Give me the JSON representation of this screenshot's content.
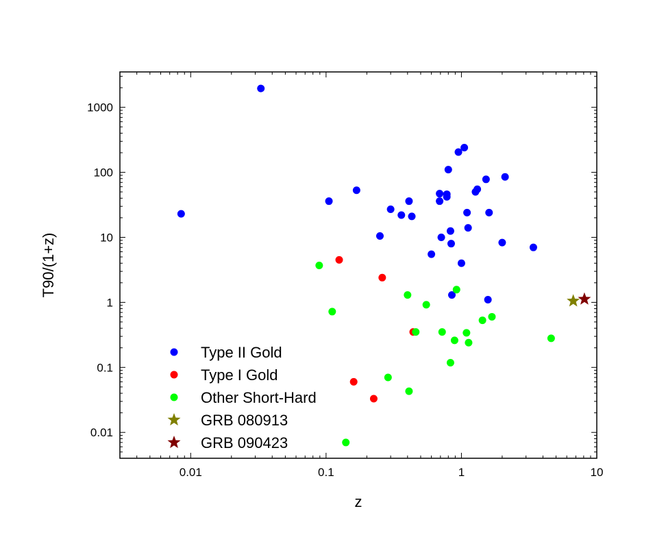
{
  "chart_data": {
    "type": "scatter",
    "title": "",
    "xlabel": "z",
    "ylabel": "T90/(1+z)",
    "xscale": "log",
    "yscale": "log",
    "xlim": [
      0.003,
      10
    ],
    "ylim": [
      0.004,
      3500
    ],
    "x_ticks": [
      {
        "value": 0.01,
        "label": "0.01"
      },
      {
        "value": 0.1,
        "label": "0.1"
      },
      {
        "value": 1,
        "label": "1"
      },
      {
        "value": 10,
        "label": "10"
      }
    ],
    "y_ticks": [
      {
        "value": 0.01,
        "label": "0.01"
      },
      {
        "value": 0.1,
        "label": "0.1"
      },
      {
        "value": 1,
        "label": "1"
      },
      {
        "value": 10,
        "label": "10"
      },
      {
        "value": 100,
        "label": "100"
      },
      {
        "value": 1000,
        "label": "1000"
      }
    ],
    "grid": false,
    "legend_position": "bottom-left",
    "series": [
      {
        "name": "Type II Gold",
        "marker": "circle",
        "color": "#0000ff",
        "points": [
          [
            0.0085,
            23
          ],
          [
            0.033,
            1950
          ],
          [
            0.105,
            36
          ],
          [
            0.168,
            53
          ],
          [
            0.25,
            10.5
          ],
          [
            0.3,
            27
          ],
          [
            0.36,
            22
          ],
          [
            0.41,
            36
          ],
          [
            0.43,
            21
          ],
          [
            0.6,
            5.5
          ],
          [
            0.69,
            47
          ],
          [
            0.69,
            36
          ],
          [
            0.71,
            10
          ],
          [
            0.78,
            46
          ],
          [
            0.78,
            42
          ],
          [
            0.8,
            110
          ],
          [
            0.83,
            12.5
          ],
          [
            0.84,
            8
          ],
          [
            0.85,
            1.3
          ],
          [
            0.95,
            205
          ],
          [
            1.0,
            4
          ],
          [
            1.05,
            240
          ],
          [
            1.1,
            24
          ],
          [
            1.12,
            14
          ],
          [
            1.27,
            50
          ],
          [
            1.31,
            55
          ],
          [
            1.52,
            78
          ],
          [
            1.57,
            1.1
          ],
          [
            1.6,
            24
          ],
          [
            2.0,
            8.3
          ],
          [
            2.1,
            85
          ],
          [
            3.4,
            7
          ]
        ]
      },
      {
        "name": "Type I Gold",
        "marker": "circle",
        "color": "#ff0000",
        "points": [
          [
            0.125,
            4.5
          ],
          [
            0.16,
            0.06
          ],
          [
            0.225,
            0.033
          ],
          [
            0.26,
            2.4
          ],
          [
            0.44,
            0.35
          ]
        ]
      },
      {
        "name": "Other Short-Hard",
        "marker": "circle",
        "color": "#00ff00",
        "points": [
          [
            0.089,
            3.7
          ],
          [
            0.111,
            0.72
          ],
          [
            0.14,
            0.007
          ],
          [
            0.287,
            0.07
          ],
          [
            0.4,
            1.3
          ],
          [
            0.41,
            0.043
          ],
          [
            0.46,
            0.35
          ],
          [
            0.55,
            0.92
          ],
          [
            0.72,
            0.35
          ],
          [
            0.83,
            0.118
          ],
          [
            0.89,
            0.26
          ],
          [
            0.92,
            1.57
          ],
          [
            1.09,
            0.34
          ],
          [
            1.13,
            0.24
          ],
          [
            1.43,
            0.53
          ],
          [
            1.68,
            0.6
          ],
          [
            4.6,
            0.28
          ]
        ]
      },
      {
        "name": "GRB 080913",
        "marker": "star",
        "color": "#808000",
        "points": [
          [
            6.7,
            1.05
          ]
        ]
      },
      {
        "name": "GRB 090423",
        "marker": "star",
        "color": "#800000",
        "points": [
          [
            8.1,
            1.12
          ]
        ]
      }
    ]
  }
}
